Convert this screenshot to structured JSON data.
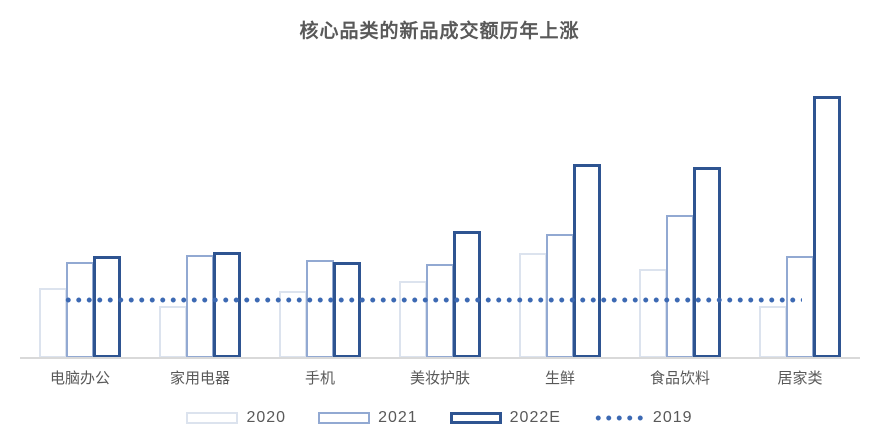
{
  "title": "核心品类的新品成交额历年上涨",
  "chart_data": {
    "type": "bar",
    "title": "核心品类的新品成交额历年上涨",
    "categories": [
      "电脑办公",
      "家用电器",
      "手机",
      "美妆护肤",
      "生鲜",
      "食品饮料",
      "居家类"
    ],
    "series": [
      {
        "name": "2020",
        "values": [
          70,
          52,
          67,
          77,
          105,
          89,
          52
        ]
      },
      {
        "name": "2021",
        "values": [
          96,
          103,
          98,
          94,
          124,
          143,
          102
        ]
      },
      {
        "name": "2022E",
        "values": [
          102,
          106,
          96,
          127,
          194,
          191,
          262
        ]
      }
    ],
    "reference_line": {
      "name": "2019",
      "value": 58,
      "style": "dotted"
    },
    "value_scale": "relative-height-px (no numeric axis labels shown in chart)",
    "ylim": [
      0,
      358
    ],
    "grid": false,
    "legend_position": "bottom",
    "colors": {
      "2020": "#dce3ee",
      "2021": "#92a9d2",
      "2022E": "#2e5491",
      "2019": "#3c69b3",
      "text": "#595959",
      "axis_line": "#d9d9d9"
    }
  }
}
